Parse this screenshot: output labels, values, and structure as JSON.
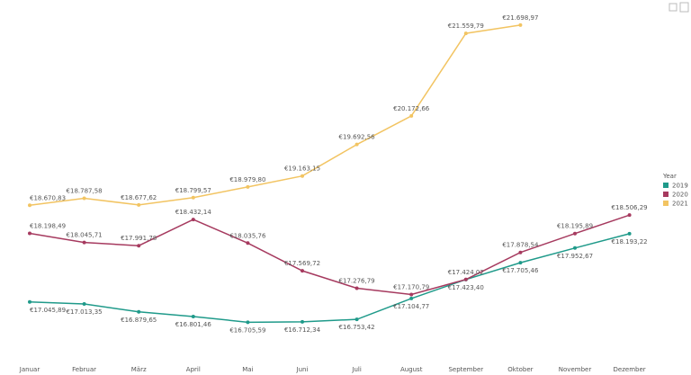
{
  "chart_data": {
    "type": "line",
    "categories": [
      "Januar",
      "Februar",
      "März",
      "April",
      "Mai",
      "Juni",
      "Juli",
      "August",
      "September",
      "Oktober",
      "November",
      "Dezember"
    ],
    "legend_title": "Year",
    "legend": "right",
    "ylim": [
      16000,
      22000
    ],
    "series": [
      {
        "name": "2019",
        "color": "#1f9a8a",
        "values": [
          17045.89,
          17013.35,
          16879.65,
          16801.46,
          16705.59,
          16712.34,
          16753.42,
          17104.77,
          17423.4,
          17705.46,
          17952.67,
          18193.22
        ],
        "value_labels": [
          "€17.045,89",
          "€17.013,35",
          "€16.879,65",
          "€16.801,46",
          "€16.705,59",
          "€16.712,34",
          "€16.753,42",
          "€17.104,77",
          "€17.423,40",
          "€17.705,46",
          "€17.952,67",
          "€18.193,22"
        ]
      },
      {
        "name": "2020",
        "color": "#a63a5f",
        "values": [
          18198.49,
          18045.71,
          17991.78,
          18432.14,
          18035.76,
          17569.72,
          17276.79,
          17170.79,
          17424.02,
          17878.54,
          18195.89,
          18506.29
        ],
        "value_labels": [
          "€18.198,49",
          "€18.045,71",
          "€17.991,78",
          "€18.432,14",
          "€18.035,76",
          "€17.569,72",
          "€17.276,79",
          "€17.170,79",
          "€17.424,02",
          "€17.878,54",
          "€18.195,89",
          "€18.506,29"
        ]
      },
      {
        "name": "2021",
        "color": "#f2c462",
        "values": [
          18670.83,
          18787.58,
          18677.62,
          18799.57,
          18979.8,
          19163.15,
          19692.56,
          20172.66,
          21559.79,
          21698.97,
          null,
          null
        ],
        "value_labels": [
          "€18.670,83",
          "€18.787,58",
          "€18.677,62",
          "€18.799,57",
          "€18.979,80",
          "€19.163,15",
          "€19.692,56",
          "€20.172,66",
          "€21.559,79",
          "€21.698,97",
          null,
          null
        ]
      }
    ]
  }
}
